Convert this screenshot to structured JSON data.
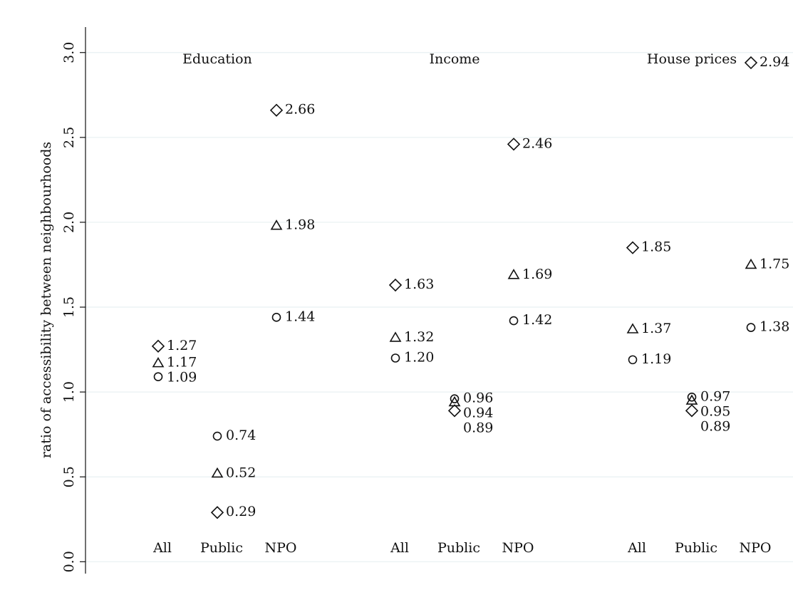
{
  "chart_data": {
    "type": "scatter",
    "y_label": "ratio of accessibility between neighbourhoods",
    "groups": [
      "Education",
      "Income",
      "House prices"
    ],
    "categories": [
      "All",
      "Public",
      "NPO",
      "All",
      "Public",
      "NPO",
      "All",
      "Public",
      "NPO"
    ],
    "series": [
      {
        "marker": "circle",
        "values": [
          1.09,
          0.74,
          1.44,
          1.2,
          0.96,
          1.42,
          1.19,
          0.97,
          1.38
        ],
        "value_labels": [
          "1.09",
          "0.74",
          "1.44",
          "1.20",
          "0.96",
          "1.42",
          "1.19",
          "0.97",
          "1.38"
        ]
      },
      {
        "marker": "triangle",
        "values": [
          1.17,
          0.52,
          1.98,
          1.32,
          0.94,
          1.69,
          1.37,
          0.95,
          1.75
        ],
        "value_labels": [
          "1.17",
          "0.52",
          "1.98",
          "1.32",
          "0.94",
          "1.69",
          "1.37",
          "0.95",
          "1.75"
        ]
      },
      {
        "marker": "diamond",
        "values": [
          1.27,
          0.29,
          2.66,
          1.63,
          0.89,
          2.46,
          1.85,
          0.89,
          2.94
        ],
        "value_labels": [
          "1.27",
          "0.29",
          "2.66",
          "1.63",
          "0.89",
          "2.46",
          "1.85",
          "0.89",
          "2.94"
        ]
      }
    ],
    "ylim": [
      -0.07,
      3.15
    ],
    "yticks": [
      {
        "value": 0,
        "label": "0.0"
      },
      0.5,
      {
        "value": 1,
        "label": "1.0"
      },
      1.5,
      {
        "value": 2,
        "label": "2.0"
      },
      2.5,
      {
        "value": 3,
        "label": "3.0"
      }
    ],
    "grid": true
  }
}
